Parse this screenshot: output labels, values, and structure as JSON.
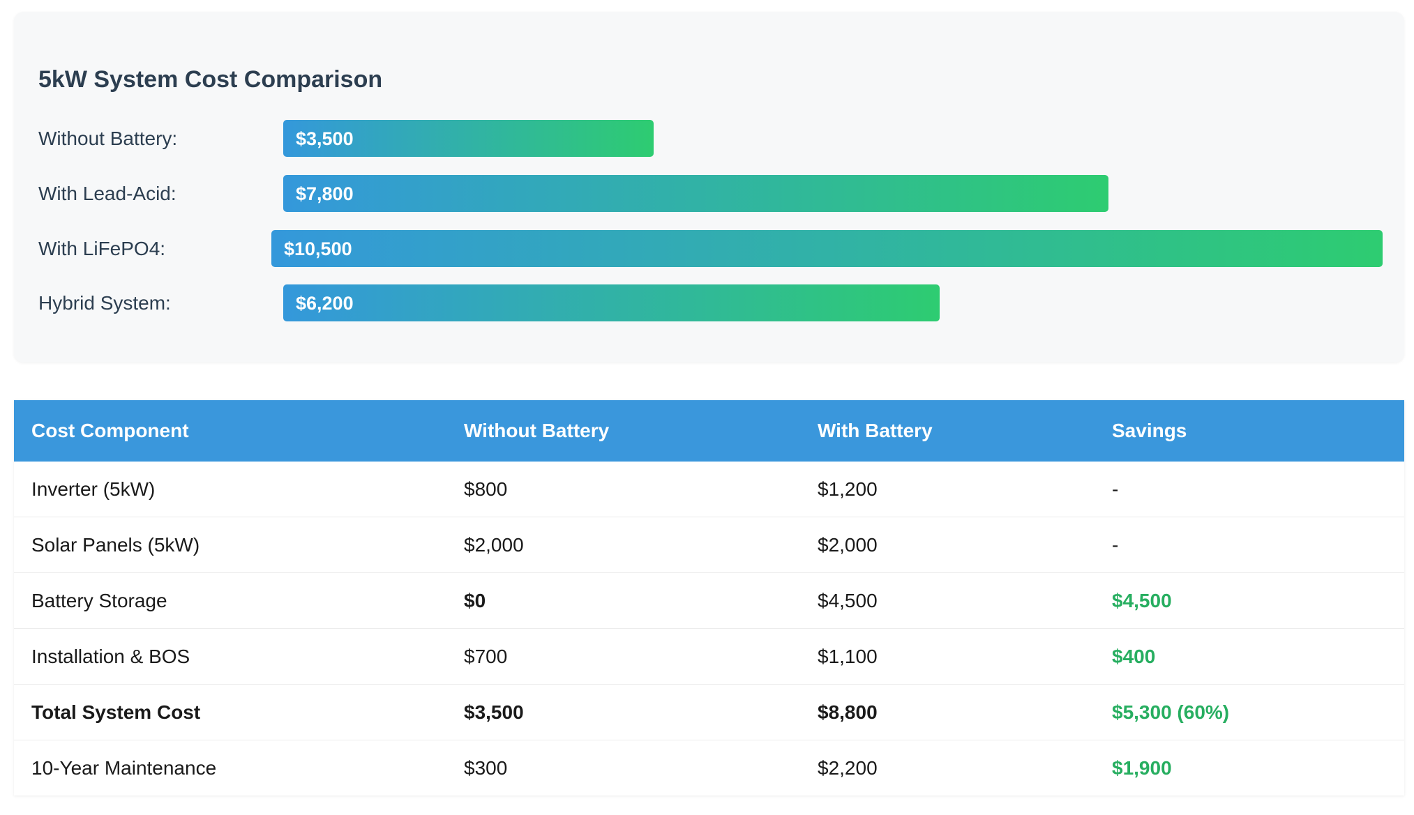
{
  "chart_data": {
    "type": "bar",
    "orientation": "horizontal",
    "title": "5kW System Cost Comparison",
    "categories": [
      "Without Battery:",
      "With Lead-Acid:",
      "With LiFePO4:",
      "Hybrid System:"
    ],
    "values": [
      3500,
      7800,
      10500,
      6200
    ],
    "value_labels": [
      "$3,500",
      "$7,800",
      "$10,500",
      "$6,200"
    ],
    "xlabel": "",
    "ylabel": "",
    "grid": false,
    "colors": {
      "gradient_start": "#3498db",
      "gradient_end": "#2ecc71"
    }
  },
  "table": {
    "headers": [
      "Cost Component",
      "Without Battery",
      "With Battery",
      "Savings"
    ],
    "rows": [
      {
        "component": "Inverter (5kW)",
        "without": "$800",
        "with": "$1,200",
        "savings": "-"
      },
      {
        "component": "Solar Panels (5kW)",
        "without": "$2,000",
        "with": "$2,000",
        "savings": "-"
      },
      {
        "component": "Battery Storage",
        "without": "$0",
        "with": "$4,500",
        "savings": "$4,500"
      },
      {
        "component": "Installation & BOS",
        "without": "$700",
        "with": "$1,100",
        "savings": "$400"
      },
      {
        "component": "Total System Cost",
        "without": "$3,500",
        "with": "$8,800",
        "savings": "$5,300 (60%)"
      },
      {
        "component": "10-Year Maintenance",
        "without": "$300",
        "with": "$2,200",
        "savings": "$1,900"
      }
    ],
    "colors": {
      "header_bg": "#3a97dc",
      "savings_text": "#27ae60"
    }
  }
}
